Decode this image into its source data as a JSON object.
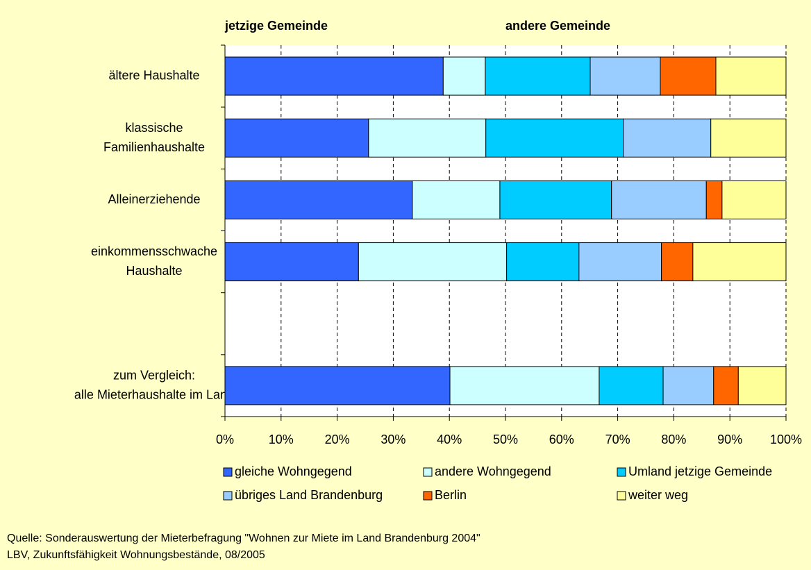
{
  "chart_data": {
    "type": "stacked-bar-horizontal",
    "annotations": [
      "jetzige Gemeinde",
      "andere Gemeinde"
    ],
    "categories": [
      [
        "ältere Haushalte"
      ],
      [
        "klassische",
        "Familienhaushalte"
      ],
      [
        "Alleinerziehende"
      ],
      [
        "einkommensschwache",
        "Haushalte"
      ],
      null,
      [
        "zum Vergleich:",
        "alle Mieterhaushalte im Land"
      ]
    ],
    "series": [
      {
        "name": "gleiche Wohngegend",
        "color": "#3366ff",
        "values": [
          38.9,
          25.6,
          33.4,
          23.8,
          null,
          40.1
        ]
      },
      {
        "name": "andere Wohngegend",
        "color": "#ccffff",
        "values": [
          7.5,
          20.9,
          15.6,
          26.4,
          null,
          26.6
        ]
      },
      {
        "name": "Umland jetzige Gemeinde",
        "color": "#00ccff",
        "values": [
          18.7,
          24.5,
          19.9,
          12.9,
          null,
          11.4
        ]
      },
      {
        "name": "übriges Land Brandenburg",
        "color": "#99ccff",
        "values": [
          12.5,
          15.6,
          16.9,
          14.7,
          null,
          9.0
        ]
      },
      {
        "name": "Berlin",
        "color": "#ff6600",
        "values": [
          9.9,
          0,
          2.8,
          5.6,
          null,
          4.4
        ]
      },
      {
        "name": "weiter weg",
        "color": "#ffff99",
        "values": [
          12.5,
          13.4,
          11.4,
          16.6,
          null,
          8.5
        ]
      }
    ],
    "xlim": [
      0,
      100
    ],
    "xticks": [
      {
        "value": 0,
        "label": "0%"
      },
      {
        "value": 10,
        "label": "10%"
      },
      {
        "value": 20,
        "label": "20%"
      },
      {
        "value": 30,
        "label": "30%"
      },
      {
        "value": 40,
        "label": "40%"
      },
      {
        "value": 50,
        "label": "50%"
      },
      {
        "value": 60,
        "label": "60%"
      },
      {
        "value": 70,
        "label": "70%"
      },
      {
        "value": 80,
        "label": "80%"
      },
      {
        "value": 90,
        "label": "90%"
      },
      {
        "value": 100,
        "label": "100%"
      }
    ],
    "grid": true,
    "legend": "bottom",
    "source": [
      "Quelle: Sonderauswertung der Mieterbefragung \"Wohnen zur Miete im Land Brandenburg 2004\"",
      "LBV, Zukunftsfähigkeit Wohnungsbestände, 08/2005"
    ]
  }
}
